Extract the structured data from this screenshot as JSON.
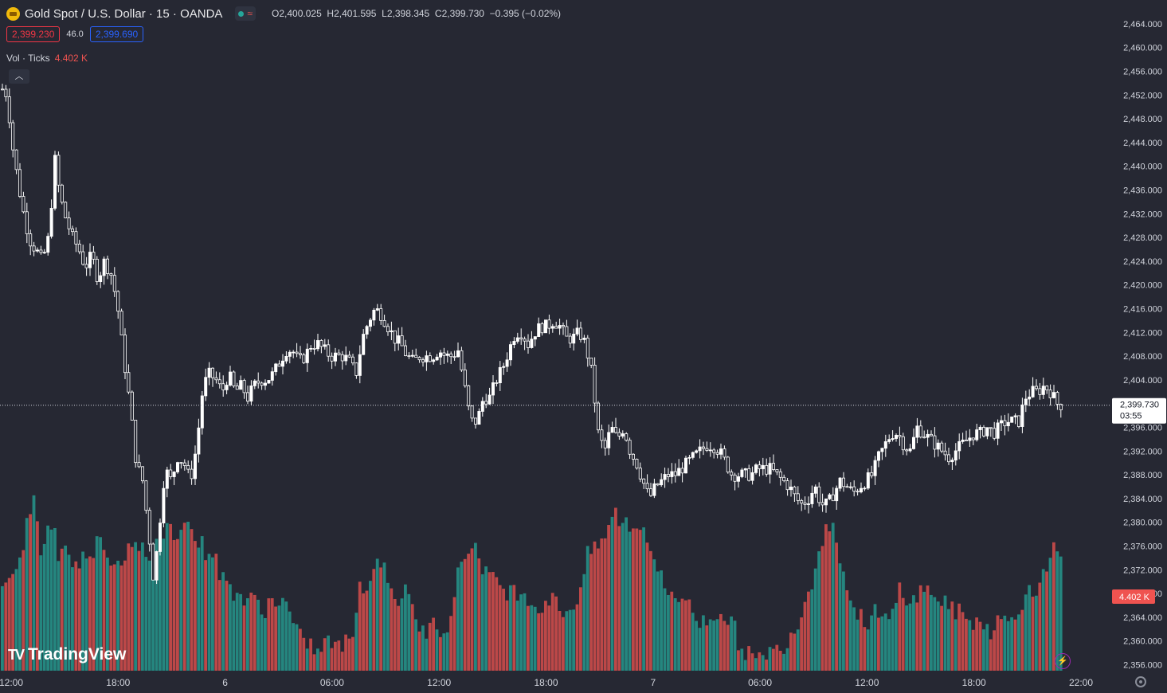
{
  "header": {
    "symbol_title": "Gold Spot / U.S. Dollar · 15 · OANDA",
    "ohlc": {
      "o_label": "O",
      "o": "2,400.025",
      "h_label": "H",
      "h": "2,401.595",
      "l_label": "L",
      "l": "2,398.345",
      "c_label": "C",
      "c": "2,399.730",
      "change": "−0.395 (−0.02%)"
    },
    "bid": "2,399.230",
    "spread": "46.0",
    "ask": "2,399.690"
  },
  "volume_legend": {
    "label": "Vol · Ticks",
    "value": "4.402 K"
  },
  "brand": {
    "logo_text": "TradingView"
  },
  "icons": {
    "symbol": "gold-coin-icon",
    "collapse": "chevron-up-icon",
    "bolt": "lightning-icon",
    "settings": "gear-icon"
  },
  "colors": {
    "up": "#ffffff",
    "down": "#ffffff",
    "vol_up": "#26a69a",
    "vol_down": "#ef5350",
    "background": "#262833",
    "last_price": "#ffffff"
  },
  "chart_data": {
    "type": "candlestick",
    "interval": "15",
    "price_axis": {
      "ticks": [
        "2,464.000",
        "2,460.000",
        "2,456.000",
        "2,452.000",
        "2,448.000",
        "2,444.000",
        "2,440.000",
        "2,436.000",
        "2,432.000",
        "2,428.000",
        "2,424.000",
        "2,420.000",
        "2,416.000",
        "2,412.000",
        "2,408.000",
        "2,404.000",
        "2,396.000",
        "2,392.000",
        "2,388.000",
        "2,384.000",
        "2,380.000",
        "2,376.000",
        "2,372.000",
        "2,368.000",
        "2,364.000",
        "2,360.000",
        "2,356.000"
      ],
      "ylim": [
        2355,
        2466
      ]
    },
    "time_axis": {
      "ticks": [
        "12:00",
        "18:00",
        "6",
        "06:00",
        "12:00",
        "18:00",
        "7",
        "06:00",
        "12:00",
        "18:00",
        "22:00"
      ]
    },
    "last_price": {
      "label": "2,399.730",
      "countdown": "03:55",
      "value": 2399.73
    },
    "volume_label": "4.402 K",
    "price_path": [
      [
        0,
        2453
      ],
      [
        6,
        2452
      ],
      [
        12,
        2444
      ],
      [
        20,
        2437
      ],
      [
        28,
        2431
      ],
      [
        36,
        2427
      ],
      [
        42,
        2426
      ],
      [
        50,
        2424
      ],
      [
        58,
        2428
      ],
      [
        66,
        2441
      ],
      [
        72,
        2435
      ],
      [
        80,
        2431
      ],
      [
        88,
        2428
      ],
      [
        96,
        2426
      ],
      [
        104,
        2423
      ],
      [
        112,
        2425
      ],
      [
        120,
        2421
      ],
      [
        128,
        2424
      ],
      [
        136,
        2422
      ],
      [
        144,
        2417
      ],
      [
        152,
        2408
      ],
      [
        160,
        2400
      ],
      [
        168,
        2390
      ],
      [
        176,
        2387
      ],
      [
        184,
        2378
      ],
      [
        190,
        2370
      ],
      [
        196,
        2378
      ],
      [
        204,
        2389
      ],
      [
        212,
        2387
      ],
      [
        220,
        2391
      ],
      [
        228,
        2390
      ],
      [
        236,
        2387
      ],
      [
        244,
        2393
      ],
      [
        252,
        2403
      ],
      [
        260,
        2405
      ],
      [
        268,
        2404
      ],
      [
        276,
        2402
      ],
      [
        284,
        2405
      ],
      [
        292,
        2402
      ],
      [
        300,
        2403
      ],
      [
        308,
        2401
      ],
      [
        316,
        2403
      ],
      [
        324,
        2404
      ],
      [
        332,
        2404
      ],
      [
        340,
        2405
      ],
      [
        348,
        2407
      ],
      [
        356,
        2409
      ],
      [
        364,
        2409
      ],
      [
        372,
        2407
      ],
      [
        380,
        2408
      ],
      [
        388,
        2410
      ],
      [
        396,
        2410
      ],
      [
        404,
        2409
      ],
      [
        412,
        2408
      ],
      [
        420,
        2408
      ],
      [
        428,
        2408
      ],
      [
        436,
        2407
      ],
      [
        444,
        2405
      ],
      [
        452,
        2411
      ],
      [
        460,
        2414
      ],
      [
        468,
        2416
      ],
      [
        476,
        2415
      ],
      [
        484,
        2413
      ],
      [
        492,
        2411
      ],
      [
        500,
        2410
      ],
      [
        508,
        2408
      ],
      [
        516,
        2407
      ],
      [
        524,
        2408
      ],
      [
        532,
        2408
      ],
      [
        540,
        2408
      ],
      [
        548,
        2409
      ],
      [
        556,
        2408
      ],
      [
        564,
        2408
      ],
      [
        572,
        2409
      ],
      [
        580,
        2403
      ],
      [
        588,
        2397
      ],
      [
        596,
        2397
      ],
      [
        604,
        2401
      ],
      [
        612,
        2401
      ],
      [
        620,
        2404
      ],
      [
        628,
        2406
      ],
      [
        636,
        2409
      ],
      [
        644,
        2412
      ],
      [
        652,
        2412
      ],
      [
        660,
        2410
      ],
      [
        668,
        2412
      ],
      [
        676,
        2413
      ],
      [
        684,
        2413
      ],
      [
        692,
        2414
      ],
      [
        700,
        2413
      ],
      [
        708,
        2411
      ],
      [
        716,
        2411
      ],
      [
        724,
        2412
      ],
      [
        732,
        2410
      ],
      [
        740,
        2405
      ],
      [
        748,
        2395
      ],
      [
        756,
        2392
      ],
      [
        764,
        2396
      ],
      [
        772,
        2394
      ],
      [
        780,
        2396
      ],
      [
        788,
        2392
      ],
      [
        796,
        2390
      ],
      [
        804,
        2387
      ],
      [
        812,
        2384
      ],
      [
        820,
        2386
      ],
      [
        828,
        2387
      ],
      [
        836,
        2388
      ],
      [
        844,
        2388
      ],
      [
        852,
        2389
      ],
      [
        860,
        2390
      ],
      [
        868,
        2391
      ],
      [
        876,
        2392
      ],
      [
        884,
        2393
      ],
      [
        892,
        2393
      ],
      [
        900,
        2392
      ],
      [
        908,
        2390
      ],
      [
        916,
        2388
      ],
      [
        924,
        2388
      ],
      [
        932,
        2388
      ],
      [
        940,
        2388
      ],
      [
        948,
        2389
      ],
      [
        956,
        2389
      ],
      [
        964,
        2389
      ],
      [
        972,
        2388
      ],
      [
        980,
        2387
      ],
      [
        988,
        2386
      ],
      [
        996,
        2384
      ],
      [
        1004,
        2383
      ],
      [
        1012,
        2384
      ],
      [
        1020,
        2386
      ],
      [
        1028,
        2383
      ],
      [
        1036,
        2383
      ],
      [
        1044,
        2385
      ],
      [
        1052,
        2387
      ],
      [
        1060,
        2386
      ],
      [
        1068,
        2385
      ],
      [
        1076,
        2386
      ],
      [
        1084,
        2387
      ],
      [
        1092,
        2388
      ],
      [
        1100,
        2391
      ],
      [
        1108,
        2393
      ],
      [
        1116,
        2395
      ],
      [
        1124,
        2395
      ],
      [
        1132,
        2393
      ],
      [
        1140,
        2392
      ],
      [
        1148,
        2396
      ],
      [
        1156,
        2395
      ],
      [
        1164,
        2394
      ],
      [
        1172,
        2393
      ],
      [
        1180,
        2392
      ],
      [
        1188,
        2391
      ],
      [
        1196,
        2392
      ],
      [
        1204,
        2393
      ],
      [
        1212,
        2394
      ],
      [
        1220,
        2395
      ],
      [
        1228,
        2395
      ],
      [
        1236,
        2396
      ],
      [
        1244,
        2395
      ],
      [
        1252,
        2396
      ],
      [
        1260,
        2397
      ],
      [
        1268,
        2397
      ],
      [
        1276,
        2397
      ],
      [
        1284,
        2401
      ],
      [
        1292,
        2402
      ],
      [
        1300,
        2402
      ],
      [
        1308,
        2403
      ],
      [
        1316,
        2402
      ],
      [
        1324,
        2400
      ],
      [
        1332,
        2399.7
      ]
    ],
    "volume_path": [
      [
        0,
        9
      ],
      [
        8,
        10
      ],
      [
        16,
        9
      ],
      [
        24,
        12
      ],
      [
        32,
        15
      ],
      [
        40,
        17
      ],
      [
        48,
        12
      ],
      [
        56,
        14
      ],
      [
        64,
        15
      ],
      [
        72,
        11
      ],
      [
        80,
        13
      ],
      [
        88,
        11
      ],
      [
        96,
        10
      ],
      [
        104,
        12
      ],
      [
        112,
        12
      ],
      [
        120,
        13
      ],
      [
        128,
        13
      ],
      [
        136,
        11
      ],
      [
        144,
        11
      ],
      [
        152,
        11
      ],
      [
        160,
        14
      ],
      [
        168,
        12
      ],
      [
        176,
        12
      ],
      [
        184,
        10
      ],
      [
        192,
        14
      ],
      [
        200,
        13
      ],
      [
        208,
        15
      ],
      [
        216,
        13
      ],
      [
        224,
        15
      ],
      [
        232,
        16
      ],
      [
        240,
        13
      ],
      [
        248,
        13
      ],
      [
        256,
        12
      ],
      [
        264,
        12
      ],
      [
        272,
        10
      ],
      [
        280,
        9
      ],
      [
        288,
        8
      ],
      [
        296,
        8
      ],
      [
        304,
        7
      ],
      [
        312,
        7
      ],
      [
        320,
        7
      ],
      [
        328,
        6
      ],
      [
        336,
        7
      ],
      [
        344,
        7
      ],
      [
        352,
        7
      ],
      [
        360,
        6
      ],
      [
        368,
        4
      ],
      [
        376,
        3
      ],
      [
        384,
        3
      ],
      [
        392,
        2
      ],
      [
        400,
        2
      ],
      [
        408,
        3
      ],
      [
        416,
        3
      ],
      [
        424,
        2
      ],
      [
        432,
        3
      ],
      [
        440,
        4
      ],
      [
        448,
        9
      ],
      [
        456,
        8
      ],
      [
        464,
        9
      ],
      [
        472,
        12
      ],
      [
        480,
        10
      ],
      [
        488,
        9
      ],
      [
        496,
        7
      ],
      [
        504,
        8
      ],
      [
        512,
        7
      ],
      [
        520,
        5
      ],
      [
        528,
        4
      ],
      [
        536,
        4
      ],
      [
        544,
        5
      ],
      [
        552,
        4
      ],
      [
        560,
        5
      ],
      [
        568,
        8
      ],
      [
        576,
        11
      ],
      [
        584,
        12
      ],
      [
        592,
        13
      ],
      [
        600,
        11
      ],
      [
        608,
        10
      ],
      [
        616,
        9
      ],
      [
        624,
        9
      ],
      [
        632,
        8
      ],
      [
        640,
        8
      ],
      [
        648,
        8
      ],
      [
        656,
        8
      ],
      [
        664,
        7
      ],
      [
        672,
        6
      ],
      [
        680,
        7
      ],
      [
        688,
        7
      ],
      [
        696,
        7
      ],
      [
        704,
        6
      ],
      [
        712,
        6
      ],
      [
        720,
        7
      ],
      [
        728,
        9
      ],
      [
        736,
        12
      ],
      [
        744,
        12
      ],
      [
        752,
        13
      ],
      [
        760,
        14
      ],
      [
        768,
        16
      ],
      [
        776,
        15
      ],
      [
        784,
        15
      ],
      [
        792,
        14
      ],
      [
        800,
        15
      ],
      [
        808,
        14
      ],
      [
        816,
        12
      ],
      [
        824,
        10
      ],
      [
        832,
        8
      ],
      [
        840,
        8
      ],
      [
        848,
        7
      ],
      [
        856,
        8
      ],
      [
        864,
        6
      ],
      [
        872,
        5
      ],
      [
        880,
        5
      ],
      [
        888,
        5
      ],
      [
        896,
        6
      ],
      [
        904,
        6
      ],
      [
        912,
        5
      ],
      [
        920,
        4
      ],
      [
        928,
        2
      ],
      [
        936,
        2
      ],
      [
        944,
        1
      ],
      [
        952,
        1
      ],
      [
        960,
        2
      ],
      [
        968,
        2
      ],
      [
        976,
        2
      ],
      [
        984,
        3
      ],
      [
        992,
        4
      ],
      [
        1000,
        5
      ],
      [
        1008,
        7
      ],
      [
        1016,
        9
      ],
      [
        1024,
        12
      ],
      [
        1032,
        14
      ],
      [
        1040,
        15
      ],
      [
        1048,
        13
      ],
      [
        1056,
        10
      ],
      [
        1064,
        7
      ],
      [
        1072,
        6
      ],
      [
        1080,
        5
      ],
      [
        1088,
        5
      ],
      [
        1096,
        6
      ],
      [
        1104,
        5
      ],
      [
        1112,
        5
      ],
      [
        1120,
        6
      ],
      [
        1128,
        9
      ],
      [
        1136,
        7
      ],
      [
        1144,
        7
      ],
      [
        1152,
        8
      ],
      [
        1160,
        8
      ],
      [
        1168,
        8
      ],
      [
        1176,
        7
      ],
      [
        1184,
        7
      ],
      [
        1192,
        6
      ],
      [
        1200,
        6
      ],
      [
        1208,
        5
      ],
      [
        1216,
        5
      ],
      [
        1224,
        5
      ],
      [
        1232,
        5
      ],
      [
        1240,
        4
      ],
      [
        1248,
        5
      ],
      [
        1256,
        5
      ],
      [
        1264,
        5
      ],
      [
        1272,
        6
      ],
      [
        1280,
        7
      ],
      [
        1288,
        8
      ],
      [
        1296,
        7
      ],
      [
        1304,
        10
      ],
      [
        1312,
        11
      ],
      [
        1320,
        12
      ],
      [
        1328,
        11
      ],
      [
        1336,
        8
      ]
    ]
  }
}
